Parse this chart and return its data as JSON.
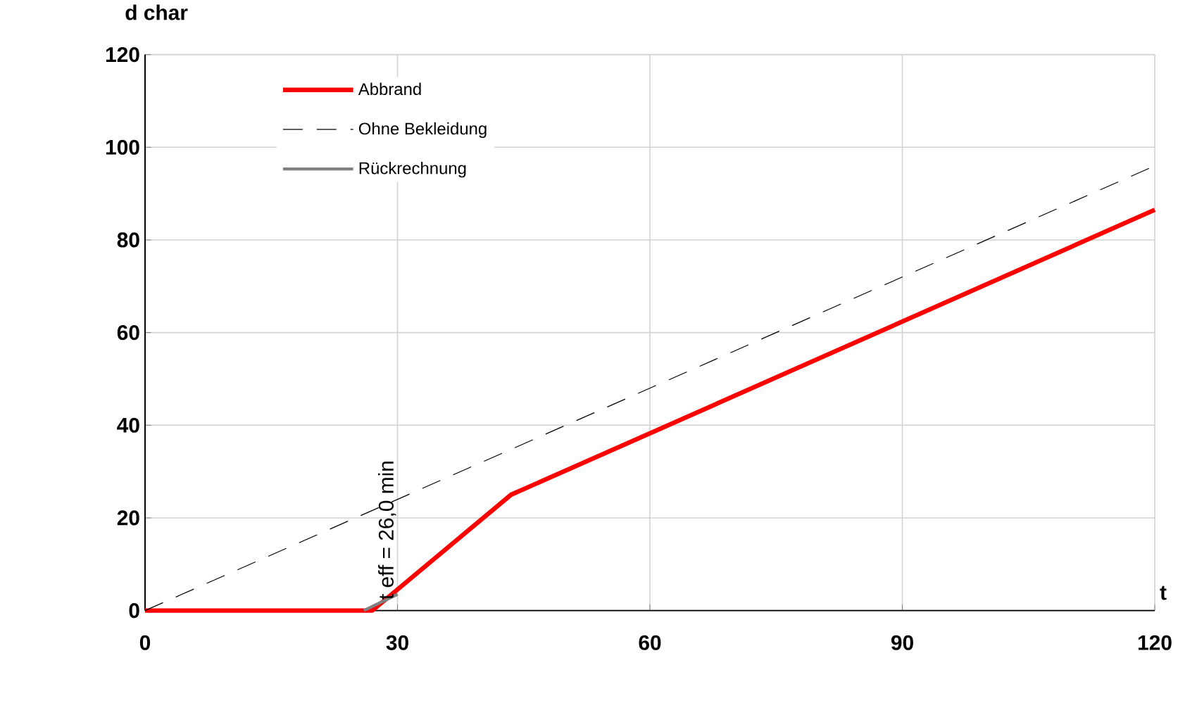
{
  "chart_data": {
    "type": "line",
    "xlabel": "t",
    "ylabel": "d char",
    "xlim": [
      0,
      120
    ],
    "ylim": [
      0,
      120
    ],
    "xticks": [
      0,
      30,
      60,
      90,
      120
    ],
    "yticks": [
      0,
      20,
      40,
      60,
      80,
      100,
      120
    ],
    "grid": true,
    "legend": "top left",
    "series": [
      {
        "name": "Abbrand",
        "color": "#ff0000",
        "line_style": "solid",
        "x": [
          0,
          27,
          43.5,
          120
        ],
        "values": [
          0,
          0,
          25,
          86.5
        ]
      },
      {
        "name": "Ohne Bekleidung",
        "color": "#000000",
        "line_style": "dashed",
        "x": [
          0,
          120
        ],
        "values": [
          0,
          96
        ]
      },
      {
        "name": "Rückrechnung",
        "color": "#808080",
        "line_style": "solid",
        "x": [
          26,
          30
        ],
        "values": [
          0,
          3.5
        ]
      }
    ],
    "annotations": [
      {
        "text": "t eff = 26,0 min",
        "x": 26,
        "y": 2
      }
    ]
  }
}
